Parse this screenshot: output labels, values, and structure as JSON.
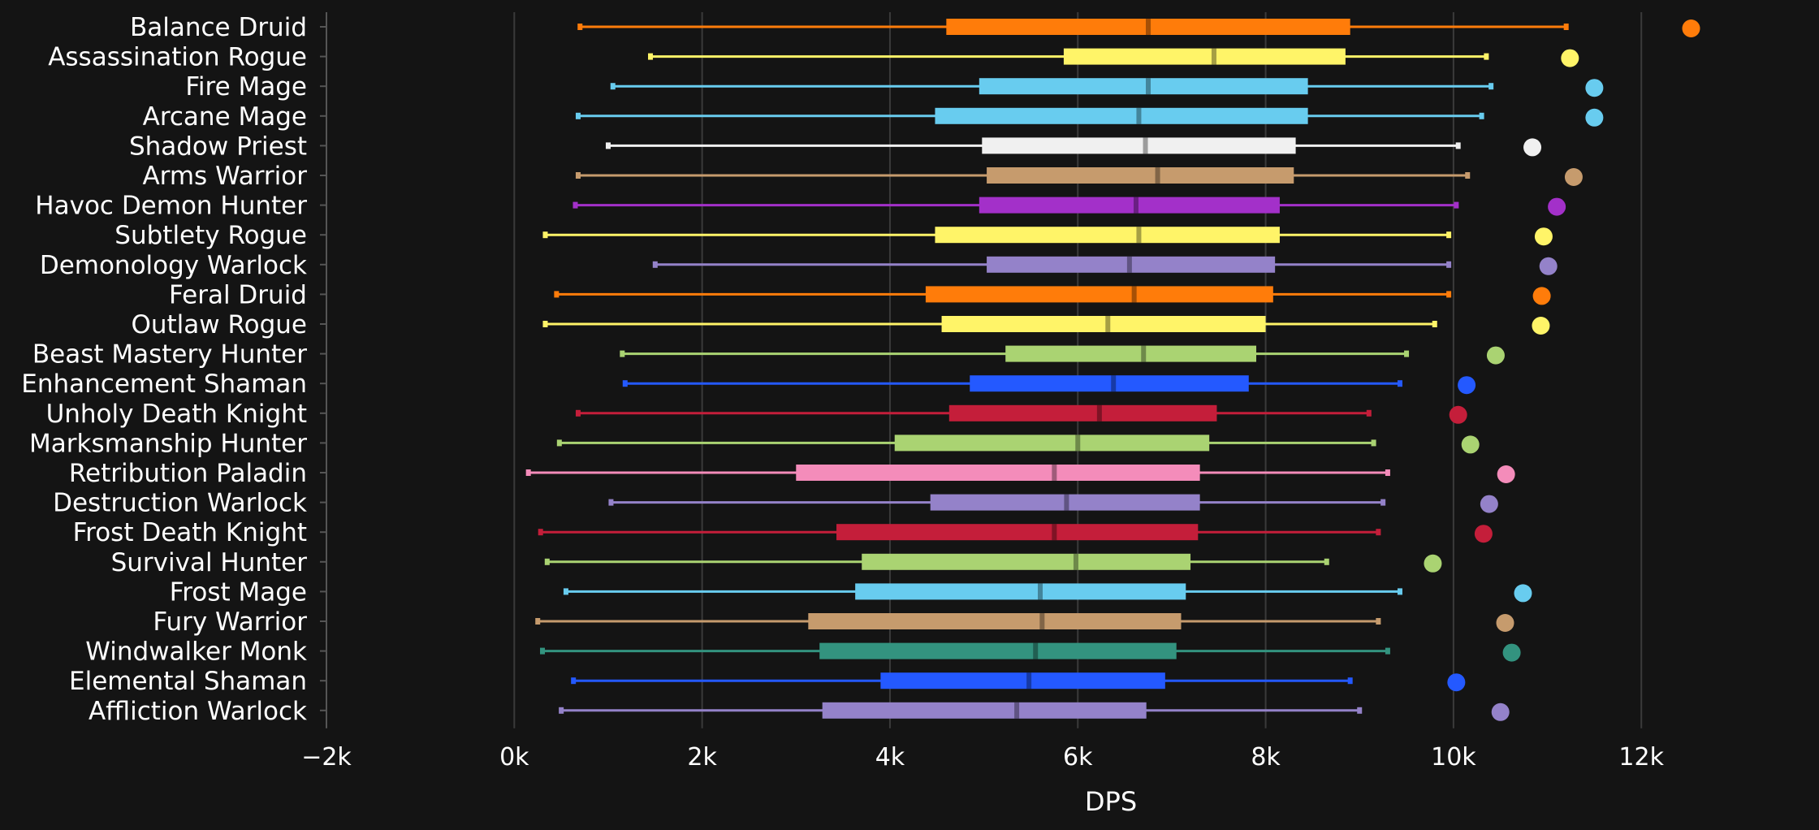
{
  "chart_data": {
    "type": "box",
    "title": "",
    "xlabel": "DPS",
    "ylabel": "",
    "xlim": [
      -2000,
      13200
    ],
    "xticks": [
      -2000,
      0,
      2000,
      4000,
      6000,
      8000,
      10000,
      12000
    ],
    "xtick_labels": [
      "−2k",
      "0k",
      "2k",
      "4k",
      "6k",
      "8k",
      "10k",
      "12k"
    ],
    "grid": "vertical",
    "series": [
      {
        "name": "Balance Druid",
        "color": "#ff7c0a",
        "whisker_low": 700,
        "q1": 4600,
        "median": 6750,
        "q3": 8900,
        "whisker_high": 11200,
        "max": 12530
      },
      {
        "name": "Assassination Rogue",
        "color": "#fff468",
        "whisker_low": 1450,
        "q1": 5850,
        "median": 7450,
        "q3": 8850,
        "whisker_high": 10350,
        "max": 11240
      },
      {
        "name": "Fire Mage",
        "color": "#68ccef",
        "whisker_low": 1050,
        "q1": 4950,
        "median": 6750,
        "q3": 8450,
        "whisker_high": 10400,
        "max": 11500
      },
      {
        "name": "Arcane Mage",
        "color": "#68ccef",
        "whisker_low": 680,
        "q1": 4480,
        "median": 6650,
        "q3": 8450,
        "whisker_high": 10300,
        "max": 11500
      },
      {
        "name": "Shadow Priest",
        "color": "#f0f0f0",
        "whisker_low": 1000,
        "q1": 4980,
        "median": 6720,
        "q3": 8320,
        "whisker_high": 10050,
        "max": 10840
      },
      {
        "name": "Arms Warrior",
        "color": "#c69b6d",
        "whisker_low": 680,
        "q1": 5030,
        "median": 6850,
        "q3": 8300,
        "whisker_high": 10150,
        "max": 11280
      },
      {
        "name": "Havoc Demon Hunter",
        "color": "#a330c9",
        "whisker_low": 650,
        "q1": 4950,
        "median": 6620,
        "q3": 8150,
        "whisker_high": 10030,
        "max": 11100
      },
      {
        "name": "Subtlety Rogue",
        "color": "#fff468",
        "whisker_low": 330,
        "q1": 4480,
        "median": 6650,
        "q3": 8150,
        "whisker_high": 9950,
        "max": 10960
      },
      {
        "name": "Demonology Warlock",
        "color": "#9482c9",
        "whisker_low": 1500,
        "q1": 5030,
        "median": 6550,
        "q3": 8100,
        "whisker_high": 9950,
        "max": 11010
      },
      {
        "name": "Feral Druid",
        "color": "#ff7c0a",
        "whisker_low": 450,
        "q1": 4380,
        "median": 6600,
        "q3": 8080,
        "whisker_high": 9950,
        "max": 10940
      },
      {
        "name": "Outlaw Rogue",
        "color": "#fff468",
        "whisker_low": 330,
        "q1": 4550,
        "median": 6320,
        "q3": 8000,
        "whisker_high": 9800,
        "max": 10930
      },
      {
        "name": "Beast Mastery Hunter",
        "color": "#aad372",
        "whisker_low": 1150,
        "q1": 5230,
        "median": 6700,
        "q3": 7900,
        "whisker_high": 9500,
        "max": 10450
      },
      {
        "name": "Enhancement Shaman",
        "color": "#2459ff",
        "whisker_low": 1180,
        "q1": 4850,
        "median": 6380,
        "q3": 7820,
        "whisker_high": 9430,
        "max": 10140
      },
      {
        "name": "Unholy Death Knight",
        "color": "#c41e3a",
        "whisker_low": 680,
        "q1": 4630,
        "median": 6230,
        "q3": 7480,
        "whisker_high": 9100,
        "max": 10050
      },
      {
        "name": "Marksmanship Hunter",
        "color": "#aad372",
        "whisker_low": 480,
        "q1": 4050,
        "median": 6000,
        "q3": 7400,
        "whisker_high": 9150,
        "max": 10180
      },
      {
        "name": "Retribution Paladin",
        "color": "#f48cba",
        "whisker_low": 150,
        "q1": 3000,
        "median": 5750,
        "q3": 7300,
        "whisker_high": 9300,
        "max": 10560
      },
      {
        "name": "Destruction Warlock",
        "color": "#9482c9",
        "whisker_low": 1030,
        "q1": 4430,
        "median": 5880,
        "q3": 7300,
        "whisker_high": 9250,
        "max": 10380
      },
      {
        "name": "Frost Death Knight",
        "color": "#c41e3a",
        "whisker_low": 280,
        "q1": 3430,
        "median": 5750,
        "q3": 7280,
        "whisker_high": 9200,
        "max": 10320
      },
      {
        "name": "Survival Hunter",
        "color": "#aad372",
        "whisker_low": 350,
        "q1": 3700,
        "median": 5980,
        "q3": 7200,
        "whisker_high": 8650,
        "max": 9780
      },
      {
        "name": "Frost Mage",
        "color": "#68ccef",
        "whisker_low": 550,
        "q1": 3630,
        "median": 5600,
        "q3": 7150,
        "whisker_high": 9430,
        "max": 10740
      },
      {
        "name": "Fury Warrior",
        "color": "#c69b6d",
        "whisker_low": 250,
        "q1": 3130,
        "median": 5620,
        "q3": 7100,
        "whisker_high": 9200,
        "max": 10550
      },
      {
        "name": "Windwalker Monk",
        "color": "#33937f",
        "whisker_low": 300,
        "q1": 3250,
        "median": 5550,
        "q3": 7050,
        "whisker_high": 9300,
        "max": 10620
      },
      {
        "name": "Elemental Shaman",
        "color": "#2459ff",
        "whisker_low": 630,
        "q1": 3900,
        "median": 5480,
        "q3": 6930,
        "whisker_high": 8900,
        "max": 10030
      },
      {
        "name": "Affliction Warlock",
        "color": "#9482c9",
        "whisker_low": 500,
        "q1": 3280,
        "median": 5350,
        "q3": 6730,
        "whisker_high": 9000,
        "max": 10500
      }
    ]
  }
}
